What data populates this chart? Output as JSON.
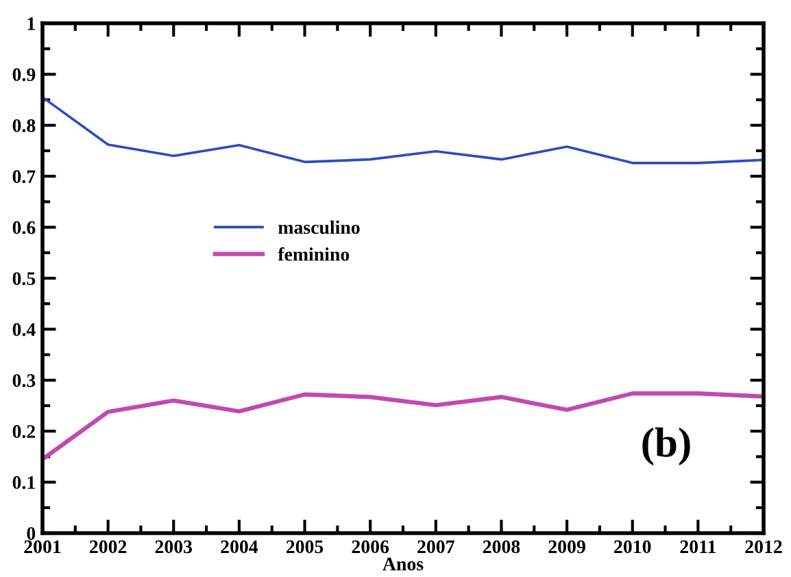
{
  "chart_data": {
    "type": "line",
    "x": [
      2001,
      2002,
      2003,
      2004,
      2005,
      2006,
      2007,
      2008,
      2009,
      2010,
      2011,
      2012
    ],
    "series": [
      {
        "name": "masculino",
        "color": "#2b4bc4",
        "values": [
          0.855,
          0.762,
          0.74,
          0.761,
          0.728,
          0.733,
          0.749,
          0.733,
          0.758,
          0.726,
          0.726,
          0.732
        ]
      },
      {
        "name": "feminino",
        "color": "#c04ab0",
        "values": [
          0.145,
          0.238,
          0.26,
          0.239,
          0.272,
          0.267,
          0.251,
          0.267,
          0.242,
          0.274,
          0.274,
          0.268
        ]
      }
    ],
    "xlabel": "Anos",
    "xlim": [
      2001,
      2012
    ],
    "xticks": [
      2001,
      2002,
      2003,
      2004,
      2005,
      2006,
      2007,
      2008,
      2009,
      2010,
      2011,
      2012
    ],
    "ylim": [
      0,
      1
    ],
    "yticks": [
      0,
      0.1,
      0.2,
      0.3,
      0.4,
      0.5,
      0.6,
      0.7,
      0.8,
      0.9,
      1
    ],
    "annotations": [
      "(b)"
    ],
    "legend": "center",
    "grid": false,
    "marker": "none",
    "line_style": "solid"
  }
}
